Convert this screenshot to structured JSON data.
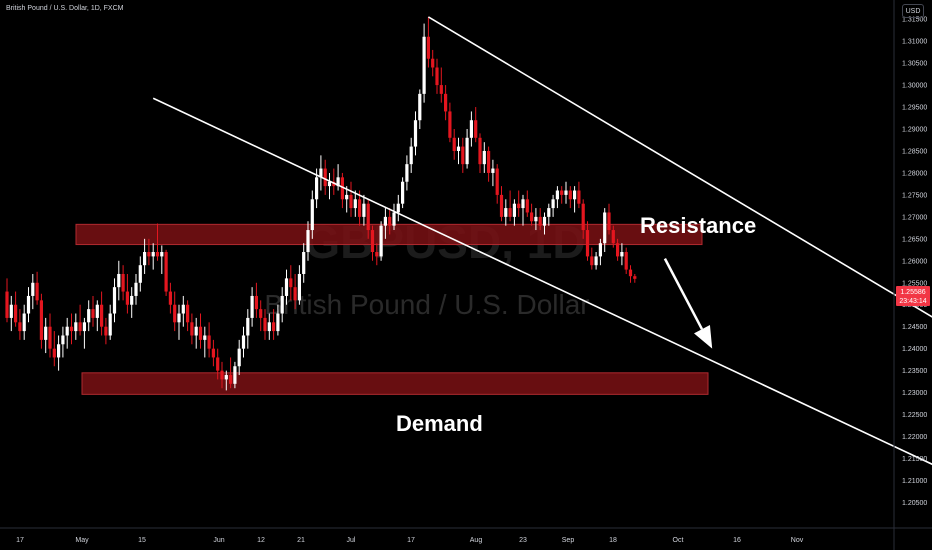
{
  "header": {
    "symbol_line": "British Pound / U.S. Dollar, 1D, FXCM"
  },
  "currency_button": "USD",
  "watermark": {
    "symbol": "GBPUSD, 1D",
    "description": "British Pound / U.S. Dollar"
  },
  "price_label": {
    "price": "1.25586",
    "countdown": "23:43:14",
    "color": "#f23645"
  },
  "colors": {
    "up": "#ffffff",
    "down": "#e4161f",
    "zone": "#7a1014",
    "line": "#ffffff"
  },
  "chart_data": {
    "type": "candlestick",
    "title": "British Pound / U.S. Dollar, 1D, FXCM",
    "y_axis_ticks": [
      "1.31500",
      "1.31000",
      "1.30500",
      "1.30000",
      "1.29500",
      "1.29000",
      "1.28500",
      "1.28000",
      "1.27500",
      "1.27000",
      "1.26500",
      "1.26000",
      "1.25500",
      "1.25000",
      "1.24500",
      "1.24000",
      "1.23500",
      "1.23000",
      "1.22500",
      "1.22000",
      "1.21500",
      "1.21000",
      "1.20500"
    ],
    "x_axis_ticks": [
      "17",
      "May",
      "15",
      "Jun",
      "12",
      "21",
      "Jul",
      "17",
      "Aug",
      "23",
      "Sep",
      "18",
      "Oct",
      "16",
      "Nov"
    ],
    "ylim": [
      1.201,
      1.318
    ],
    "grid": false,
    "zones": [
      {
        "label": "Resistance",
        "low": 1.2637,
        "high": 1.2683
      },
      {
        "label": "Demand",
        "low": 1.2296,
        "high": 1.2345
      }
    ],
    "trendlines": [
      {
        "from": [
          "2024-07-11",
          1.3155
        ],
        "to": [
          "2024-11-21",
          1.238
        ]
      },
      {
        "from": [
          "2024-05-08",
          1.297
        ],
        "to": [
          "2024-11-11",
          1.211
        ]
      }
    ],
    "arrow": {
      "from": [
        "2024-09-04",
        1.2605
      ],
      "to": [
        "2024-09-15",
        1.24
      ]
    },
    "candles": [
      {
        "d": "2024-04-04",
        "o": 1.253,
        "h": 1.256,
        "l": 1.246,
        "c": 1.247
      },
      {
        "d": "2024-04-05",
        "o": 1.247,
        "h": 1.252,
        "l": 1.244,
        "c": 1.25
      },
      {
        "d": "2024-04-06",
        "o": 1.25,
        "h": 1.253,
        "l": 1.245,
        "c": 1.246
      },
      {
        "d": "2024-04-07",
        "o": 1.246,
        "h": 1.249,
        "l": 1.242,
        "c": 1.244
      },
      {
        "d": "2024-04-08",
        "o": 1.244,
        "h": 1.25,
        "l": 1.242,
        "c": 1.248
      },
      {
        "d": "2024-04-09",
        "o": 1.248,
        "h": 1.254,
        "l": 1.246,
        "c": 1.252
      },
      {
        "d": "2024-04-10",
        "o": 1.252,
        "h": 1.257,
        "l": 1.249,
        "c": 1.255
      },
      {
        "d": "2024-04-11",
        "o": 1.255,
        "h": 1.2575,
        "l": 1.25,
        "c": 1.251
      },
      {
        "d": "2024-04-12",
        "o": 1.251,
        "h": 1.2525,
        "l": 1.24,
        "c": 1.242
      },
      {
        "d": "2024-04-13",
        "o": 1.242,
        "h": 1.247,
        "l": 1.239,
        "c": 1.245
      },
      {
        "d": "2024-04-14",
        "o": 1.245,
        "h": 1.248,
        "l": 1.238,
        "c": 1.24
      },
      {
        "d": "2024-04-15",
        "o": 1.24,
        "h": 1.244,
        "l": 1.236,
        "c": 1.238
      },
      {
        "d": "2024-04-16",
        "o": 1.238,
        "h": 1.243,
        "l": 1.235,
        "c": 1.241
      },
      {
        "d": "2024-04-17",
        "o": 1.241,
        "h": 1.245,
        "l": 1.238,
        "c": 1.243
      },
      {
        "d": "2024-04-18",
        "o": 1.243,
        "h": 1.247,
        "l": 1.24,
        "c": 1.245
      },
      {
        "d": "2024-04-19",
        "o": 1.245,
        "h": 1.248,
        "l": 1.241,
        "c": 1.244
      },
      {
        "d": "2024-04-20",
        "o": 1.244,
        "h": 1.248,
        "l": 1.242,
        "c": 1.246
      },
      {
        "d": "2024-04-21",
        "o": 1.246,
        "h": 1.25,
        "l": 1.243,
        "c": 1.244
      },
      {
        "d": "2024-04-22",
        "o": 1.244,
        "h": 1.247,
        "l": 1.24,
        "c": 1.246
      },
      {
        "d": "2024-04-23",
        "o": 1.246,
        "h": 1.251,
        "l": 1.244,
        "c": 1.249
      },
      {
        "d": "2024-04-24",
        "o": 1.249,
        "h": 1.252,
        "l": 1.245,
        "c": 1.247
      },
      {
        "d": "2024-04-25",
        "o": 1.247,
        "h": 1.251,
        "l": 1.244,
        "c": 1.25
      },
      {
        "d": "2024-04-26",
        "o": 1.25,
        "h": 1.253,
        "l": 1.243,
        "c": 1.245
      },
      {
        "d": "2024-04-27",
        "o": 1.245,
        "h": 1.247,
        "l": 1.241,
        "c": 1.243
      },
      {
        "d": "2024-04-28",
        "o": 1.243,
        "h": 1.25,
        "l": 1.242,
        "c": 1.248
      },
      {
        "d": "2024-04-29",
        "o": 1.248,
        "h": 1.256,
        "l": 1.246,
        "c": 1.254
      },
      {
        "d": "2024-04-30",
        "o": 1.254,
        "h": 1.26,
        "l": 1.251,
        "c": 1.257
      },
      {
        "d": "2024-05-01",
        "o": 1.257,
        "h": 1.259,
        "l": 1.251,
        "c": 1.253
      },
      {
        "d": "2024-05-02",
        "o": 1.253,
        "h": 1.257,
        "l": 1.248,
        "c": 1.25
      },
      {
        "d": "2024-05-03",
        "o": 1.25,
        "h": 1.254,
        "l": 1.247,
        "c": 1.252
      },
      {
        "d": "2024-05-04",
        "o": 1.252,
        "h": 1.257,
        "l": 1.25,
        "c": 1.255
      },
      {
        "d": "2024-05-05",
        "o": 1.255,
        "h": 1.261,
        "l": 1.253,
        "c": 1.259
      },
      {
        "d": "2024-05-06",
        "o": 1.259,
        "h": 1.265,
        "l": 1.257,
        "c": 1.262
      },
      {
        "d": "2024-05-07",
        "o": 1.262,
        "h": 1.265,
        "l": 1.259,
        "c": 1.261
      },
      {
        "d": "2024-05-08",
        "o": 1.261,
        "h": 1.264,
        "l": 1.258,
        "c": 1.262
      },
      {
        "d": "2024-05-09",
        "o": 1.262,
        "h": 1.2685,
        "l": 1.26,
        "c": 1.261
      },
      {
        "d": "2024-05-10",
        "o": 1.261,
        "h": 1.2635,
        "l": 1.257,
        "c": 1.262
      },
      {
        "d": "2024-05-11",
        "o": 1.262,
        "h": 1.2625,
        "l": 1.252,
        "c": 1.253
      },
      {
        "d": "2024-05-12",
        "o": 1.253,
        "h": 1.255,
        "l": 1.248,
        "c": 1.25
      },
      {
        "d": "2024-05-13",
        "o": 1.25,
        "h": 1.253,
        "l": 1.244,
        "c": 1.246
      },
      {
        "d": "2024-05-14",
        "o": 1.246,
        "h": 1.25,
        "l": 1.242,
        "c": 1.248
      },
      {
        "d": "2024-05-15",
        "o": 1.248,
        "h": 1.252,
        "l": 1.245,
        "c": 1.25
      },
      {
        "d": "2024-05-16",
        "o": 1.25,
        "h": 1.251,
        "l": 1.244,
        "c": 1.246
      },
      {
        "d": "2024-05-17",
        "o": 1.246,
        "h": 1.248,
        "l": 1.241,
        "c": 1.243
      },
      {
        "d": "2024-05-18",
        "o": 1.243,
        "h": 1.247,
        "l": 1.24,
        "c": 1.245
      },
      {
        "d": "2024-05-19",
        "o": 1.245,
        "h": 1.248,
        "l": 1.24,
        "c": 1.242
      },
      {
        "d": "2024-05-20",
        "o": 1.242,
        "h": 1.245,
        "l": 1.238,
        "c": 1.243
      },
      {
        "d": "2024-05-21",
        "o": 1.243,
        "h": 1.246,
        "l": 1.238,
        "c": 1.24
      },
      {
        "d": "2024-05-22",
        "o": 1.24,
        "h": 1.242,
        "l": 1.236,
        "c": 1.238
      },
      {
        "d": "2024-05-23",
        "o": 1.238,
        "h": 1.24,
        "l": 1.233,
        "c": 1.235
      },
      {
        "d": "2024-05-24",
        "o": 1.235,
        "h": 1.237,
        "l": 1.231,
        "c": 1.233
      },
      {
        "d": "2024-05-25",
        "o": 1.233,
        "h": 1.235,
        "l": 1.2305,
        "c": 1.234
      },
      {
        "d": "2024-05-26",
        "o": 1.234,
        "h": 1.238,
        "l": 1.231,
        "c": 1.232
      },
      {
        "d": "2024-05-27",
        "o": 1.232,
        "h": 1.237,
        "l": 1.231,
        "c": 1.236
      },
      {
        "d": "2024-05-28",
        "o": 1.236,
        "h": 1.242,
        "l": 1.234,
        "c": 1.24
      },
      {
        "d": "2024-05-29",
        "o": 1.24,
        "h": 1.245,
        "l": 1.238,
        "c": 1.243
      },
      {
        "d": "2024-05-30",
        "o": 1.243,
        "h": 1.249,
        "l": 1.24,
        "c": 1.247
      },
      {
        "d": "2024-05-31",
        "o": 1.247,
        "h": 1.254,
        "l": 1.245,
        "c": 1.252
      },
      {
        "d": "2024-06-01",
        "o": 1.252,
        "h": 1.255,
        "l": 1.247,
        "c": 1.249
      },
      {
        "d": "2024-06-02",
        "o": 1.249,
        "h": 1.251,
        "l": 1.244,
        "c": 1.247
      },
      {
        "d": "2024-06-03",
        "o": 1.247,
        "h": 1.249,
        "l": 1.242,
        "c": 1.244
      },
      {
        "d": "2024-06-04",
        "o": 1.244,
        "h": 1.248,
        "l": 1.242,
        "c": 1.246
      },
      {
        "d": "2024-06-05",
        "o": 1.246,
        "h": 1.249,
        "l": 1.242,
        "c": 1.244
      },
      {
        "d": "2024-06-06",
        "o": 1.244,
        "h": 1.25,
        "l": 1.243,
        "c": 1.248
      },
      {
        "d": "2024-06-07",
        "o": 1.248,
        "h": 1.254,
        "l": 1.246,
        "c": 1.252
      },
      {
        "d": "2024-06-08",
        "o": 1.252,
        "h": 1.258,
        "l": 1.25,
        "c": 1.256
      },
      {
        "d": "2024-06-09",
        "o": 1.256,
        "h": 1.259,
        "l": 1.251,
        "c": 1.254
      },
      {
        "d": "2024-06-10",
        "o": 1.254,
        "h": 1.257,
        "l": 1.249,
        "c": 1.251
      },
      {
        "d": "2024-06-11",
        "o": 1.251,
        "h": 1.259,
        "l": 1.25,
        "c": 1.257
      },
      {
        "d": "2024-06-12",
        "o": 1.257,
        "h": 1.264,
        "l": 1.255,
        "c": 1.262
      },
      {
        "d": "2024-06-13",
        "o": 1.262,
        "h": 1.269,
        "l": 1.26,
        "c": 1.267
      },
      {
        "d": "2024-06-14",
        "o": 1.267,
        "h": 1.276,
        "l": 1.265,
        "c": 1.274
      },
      {
        "d": "2024-06-15",
        "o": 1.274,
        "h": 1.281,
        "l": 1.272,
        "c": 1.279
      },
      {
        "d": "2024-06-16",
        "o": 1.279,
        "h": 1.284,
        "l": 1.276,
        "c": 1.281
      },
      {
        "d": "2024-06-17",
        "o": 1.281,
        "h": 1.283,
        "l": 1.275,
        "c": 1.277
      },
      {
        "d": "2024-06-18",
        "o": 1.277,
        "h": 1.28,
        "l": 1.274,
        "c": 1.278
      },
      {
        "d": "2024-06-19",
        "o": 1.278,
        "h": 1.281,
        "l": 1.275,
        "c": 1.277
      },
      {
        "d": "2024-06-20",
        "o": 1.277,
        "h": 1.282,
        "l": 1.276,
        "c": 1.279
      },
      {
        "d": "2024-06-21",
        "o": 1.279,
        "h": 1.28,
        "l": 1.272,
        "c": 1.274
      },
      {
        "d": "2024-06-22",
        "o": 1.274,
        "h": 1.277,
        "l": 1.271,
        "c": 1.275
      },
      {
        "d": "2024-06-23",
        "o": 1.275,
        "h": 1.278,
        "l": 1.27,
        "c": 1.272
      },
      {
        "d": "2024-06-24",
        "o": 1.272,
        "h": 1.276,
        "l": 1.27,
        "c": 1.274
      },
      {
        "d": "2024-06-25",
        "o": 1.274,
        "h": 1.276,
        "l": 1.268,
        "c": 1.27
      },
      {
        "d": "2024-06-26",
        "o": 1.27,
        "h": 1.275,
        "l": 1.268,
        "c": 1.273
      },
      {
        "d": "2024-06-27",
        "o": 1.273,
        "h": 1.274,
        "l": 1.265,
        "c": 1.267
      },
      {
        "d": "2024-06-28",
        "o": 1.267,
        "h": 1.268,
        "l": 1.26,
        "c": 1.262
      },
      {
        "d": "2024-06-29",
        "o": 1.262,
        "h": 1.264,
        "l": 1.259,
        "c": 1.261
      },
      {
        "d": "2024-06-30",
        "o": 1.261,
        "h": 1.269,
        "l": 1.26,
        "c": 1.268
      },
      {
        "d": "2024-07-01",
        "o": 1.268,
        "h": 1.272,
        "l": 1.265,
        "c": 1.27
      },
      {
        "d": "2024-07-02",
        "o": 1.27,
        "h": 1.272,
        "l": 1.266,
        "c": 1.268
      },
      {
        "d": "2024-07-03",
        "o": 1.268,
        "h": 1.273,
        "l": 1.267,
        "c": 1.271
      },
      {
        "d": "2024-07-04",
        "o": 1.271,
        "h": 1.275,
        "l": 1.269,
        "c": 1.273
      },
      {
        "d": "2024-07-05",
        "o": 1.273,
        "h": 1.279,
        "l": 1.272,
        "c": 1.278
      },
      {
        "d": "2024-07-06",
        "o": 1.278,
        "h": 1.284,
        "l": 1.276,
        "c": 1.282
      },
      {
        "d": "2024-07-07",
        "o": 1.282,
        "h": 1.288,
        "l": 1.28,
        "c": 1.286
      },
      {
        "d": "2024-07-08",
        "o": 1.286,
        "h": 1.294,
        "l": 1.284,
        "c": 1.292
      },
      {
        "d": "2024-07-09",
        "o": 1.292,
        "h": 1.299,
        "l": 1.29,
        "c": 1.298
      },
      {
        "d": "2024-07-10",
        "o": 1.298,
        "h": 1.314,
        "l": 1.296,
        "c": 1.311
      },
      {
        "d": "2024-07-11",
        "o": 1.311,
        "h": 1.3155,
        "l": 1.304,
        "c": 1.306
      },
      {
        "d": "2024-07-12",
        "o": 1.306,
        "h": 1.308,
        "l": 1.302,
        "c": 1.304
      },
      {
        "d": "2024-07-13",
        "o": 1.304,
        "h": 1.306,
        "l": 1.298,
        "c": 1.3
      },
      {
        "d": "2024-07-14",
        "o": 1.3,
        "h": 1.304,
        "l": 1.296,
        "c": 1.298
      },
      {
        "d": "2024-07-15",
        "o": 1.298,
        "h": 1.3,
        "l": 1.292,
        "c": 1.294
      },
      {
        "d": "2024-07-16",
        "o": 1.294,
        "h": 1.296,
        "l": 1.287,
        "c": 1.288
      },
      {
        "d": "2024-07-17",
        "o": 1.288,
        "h": 1.29,
        "l": 1.283,
        "c": 1.285
      },
      {
        "d": "2024-07-18",
        "o": 1.285,
        "h": 1.288,
        "l": 1.282,
        "c": 1.286
      },
      {
        "d": "2024-07-19",
        "o": 1.286,
        "h": 1.288,
        "l": 1.28,
        "c": 1.282
      },
      {
        "d": "2024-07-20",
        "o": 1.282,
        "h": 1.29,
        "l": 1.281,
        "c": 1.288
      },
      {
        "d": "2024-07-21",
        "o": 1.288,
        "h": 1.294,
        "l": 1.286,
        "c": 1.292
      },
      {
        "d": "2024-07-22",
        "o": 1.292,
        "h": 1.295,
        "l": 1.287,
        "c": 1.288
      },
      {
        "d": "2024-07-23",
        "o": 1.288,
        "h": 1.289,
        "l": 1.28,
        "c": 1.282
      },
      {
        "d": "2024-07-24",
        "o": 1.282,
        "h": 1.287,
        "l": 1.28,
        "c": 1.285
      },
      {
        "d": "2024-07-25",
        "o": 1.285,
        "h": 1.286,
        "l": 1.278,
        "c": 1.28
      },
      {
        "d": "2024-07-26",
        "o": 1.28,
        "h": 1.283,
        "l": 1.277,
        "c": 1.281
      },
      {
        "d": "2024-07-27",
        "o": 1.281,
        "h": 1.282,
        "l": 1.273,
        "c": 1.275
      },
      {
        "d": "2024-07-28",
        "o": 1.275,
        "h": 1.277,
        "l": 1.269,
        "c": 1.27
      },
      {
        "d": "2024-07-29",
        "o": 1.27,
        "h": 1.274,
        "l": 1.268,
        "c": 1.272
      },
      {
        "d": "2024-07-30",
        "o": 1.272,
        "h": 1.276,
        "l": 1.269,
        "c": 1.27
      },
      {
        "d": "2024-07-31",
        "o": 1.27,
        "h": 1.274,
        "l": 1.268,
        "c": 1.273
      },
      {
        "d": "2024-08-01",
        "o": 1.273,
        "h": 1.276,
        "l": 1.27,
        "c": 1.272
      },
      {
        "d": "2024-08-02",
        "o": 1.272,
        "h": 1.275,
        "l": 1.268,
        "c": 1.274
      },
      {
        "d": "2024-08-03",
        "o": 1.274,
        "h": 1.276,
        "l": 1.27,
        "c": 1.271
      },
      {
        "d": "2024-08-04",
        "o": 1.271,
        "h": 1.273,
        "l": 1.268,
        "c": 1.269
      },
      {
        "d": "2024-08-05",
        "o": 1.269,
        "h": 1.272,
        "l": 1.267,
        "c": 1.27
      },
      {
        "d": "2024-08-06",
        "o": 1.27,
        "h": 1.272,
        "l": 1.267,
        "c": 1.268
      },
      {
        "d": "2024-08-07",
        "o": 1.268,
        "h": 1.271,
        "l": 1.266,
        "c": 1.27
      },
      {
        "d": "2024-08-08",
        "o": 1.27,
        "h": 1.273,
        "l": 1.268,
        "c": 1.272
      },
      {
        "d": "2024-08-09",
        "o": 1.272,
        "h": 1.275,
        "l": 1.27,
        "c": 1.274
      },
      {
        "d": "2024-08-10",
        "o": 1.274,
        "h": 1.277,
        "l": 1.272,
        "c": 1.276
      },
      {
        "d": "2024-08-11",
        "o": 1.276,
        "h": 1.277,
        "l": 1.273,
        "c": 1.275
      },
      {
        "d": "2024-08-12",
        "o": 1.275,
        "h": 1.278,
        "l": 1.273,
        "c": 1.276
      },
      {
        "d": "2024-08-13",
        "o": 1.276,
        "h": 1.277,
        "l": 1.272,
        "c": 1.274
      },
      {
        "d": "2024-08-14",
        "o": 1.274,
        "h": 1.277,
        "l": 1.271,
        "c": 1.276
      },
      {
        "d": "2024-08-15",
        "o": 1.276,
        "h": 1.278,
        "l": 1.272,
        "c": 1.273
      },
      {
        "d": "2024-08-16",
        "o": 1.273,
        "h": 1.274,
        "l": 1.265,
        "c": 1.267
      },
      {
        "d": "2024-08-17",
        "o": 1.267,
        "h": 1.269,
        "l": 1.26,
        "c": 1.261
      },
      {
        "d": "2024-08-18",
        "o": 1.261,
        "h": 1.263,
        "l": 1.258,
        "c": 1.259
      },
      {
        "d": "2024-08-19",
        "o": 1.259,
        "h": 1.262,
        "l": 1.258,
        "c": 1.261
      },
      {
        "d": "2024-08-20",
        "o": 1.261,
        "h": 1.265,
        "l": 1.259,
        "c": 1.264
      },
      {
        "d": "2024-08-21",
        "o": 1.264,
        "h": 1.272,
        "l": 1.262,
        "c": 1.271
      },
      {
        "d": "2024-08-22",
        "o": 1.271,
        "h": 1.273,
        "l": 1.266,
        "c": 1.267
      },
      {
        "d": "2024-08-23",
        "o": 1.267,
        "h": 1.268,
        "l": 1.263,
        "c": 1.264
      },
      {
        "d": "2024-08-24",
        "o": 1.264,
        "h": 1.265,
        "l": 1.26,
        "c": 1.261
      },
      {
        "d": "2024-08-25",
        "o": 1.261,
        "h": 1.264,
        "l": 1.259,
        "c": 1.262
      },
      {
        "d": "2024-08-26",
        "o": 1.262,
        "h": 1.263,
        "l": 1.257,
        "c": 1.258
      },
      {
        "d": "2024-08-27",
        "o": 1.258,
        "h": 1.259,
        "l": 1.255,
        "c": 1.2565
      },
      {
        "d": "2024-08-28",
        "o": 1.2565,
        "h": 1.257,
        "l": 1.255,
        "c": 1.2559
      }
    ]
  }
}
